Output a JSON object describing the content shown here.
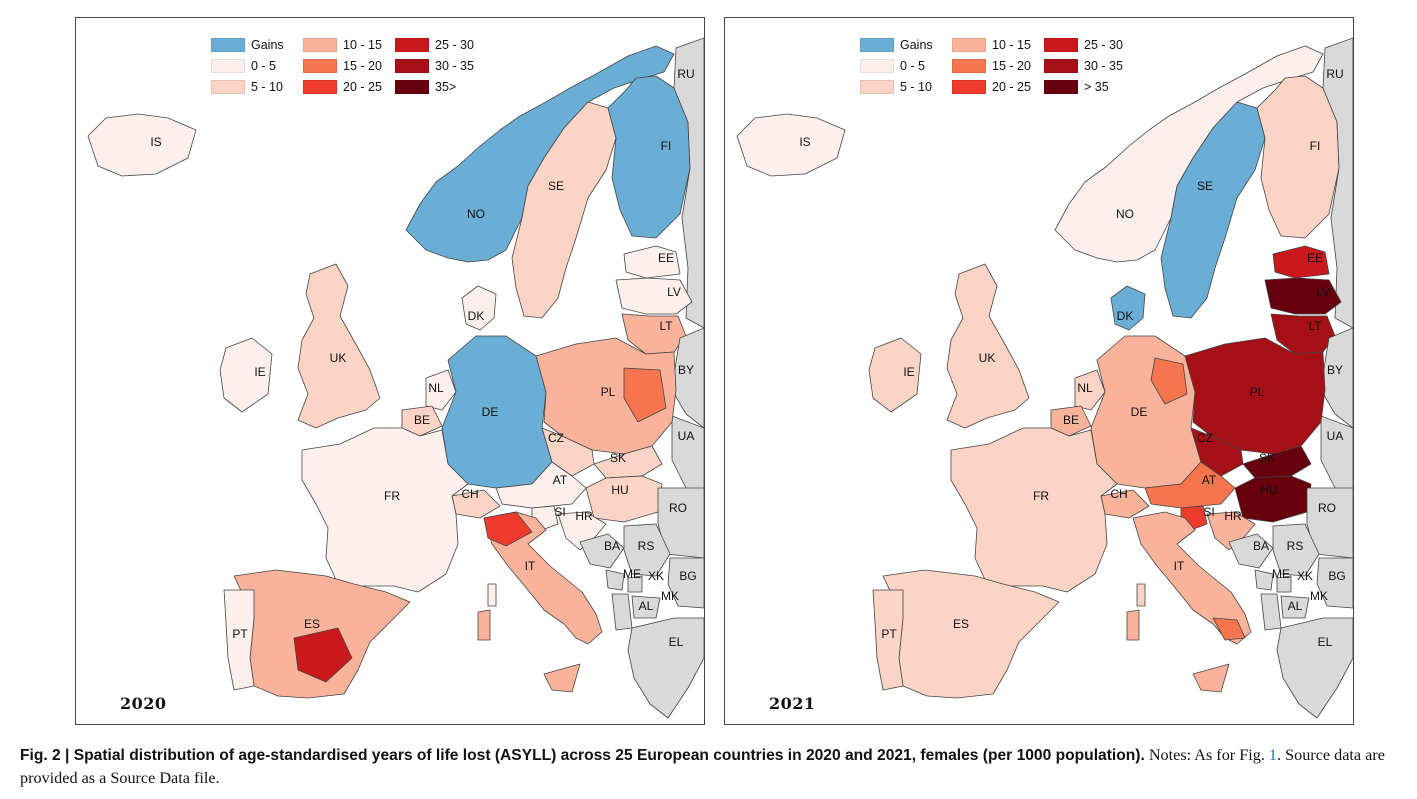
{
  "colors": {
    "gains": "#6aaed6",
    "c0_5": "#fdf0ec",
    "c5_10": "#fbd4c6",
    "c10_15": "#f9b39b",
    "c15_20": "#f6754e",
    "c20_25": "#ef3b2c",
    "c25_30": "#cb181d",
    "c30_35": "#a50f15",
    "c35": "#67000d",
    "nonstudy": "#d9d9d9",
    "border": "#444444"
  },
  "maps": [
    {
      "year": "2020",
      "legend": [
        "Gains",
        "0 - 5",
        "5 - 10",
        "10 - 15",
        "15 - 20",
        "20 - 25",
        "25 - 30",
        "30 - 35",
        "35>"
      ],
      "countries": {
        "IS": "c0_5",
        "NO": "gains",
        "SE": "c5_10",
        "FI": "gains",
        "EE": "c0_5",
        "LV": "c0_5",
        "LT": "c10_15",
        "DK": "c0_5",
        "UK": "c5_10",
        "IE": "c0_5",
        "NL": "c0_5",
        "BE": "c5_10",
        "DE": "gains",
        "PL": "c10_15",
        "CZ": "c5_10",
        "SK": "c5_10",
        "AT": "c0_5",
        "HU": "c5_10",
        "CH": "c5_10",
        "FR": "c0_5",
        "SI": "c0_5",
        "HR": "c0_5",
        "IT": "c10_15",
        "ES": "c10_15",
        "PT": "c0_5"
      },
      "hotspots": [
        {
          "label": "ES-center",
          "cls": "c25_30"
        },
        {
          "label": "IT-north",
          "cls": "c20_25"
        },
        {
          "label": "PL-east",
          "cls": "c15_20"
        }
      ]
    },
    {
      "year": "2021",
      "legend": [
        "Gains",
        "0 - 5",
        "5 - 10",
        "10 - 15",
        "15 - 20",
        "20 - 25",
        "25 - 30",
        "30 - 35",
        "> 35"
      ],
      "countries": {
        "IS": "c0_5",
        "NO": "c0_5",
        "SE": "gains",
        "FI": "c5_10",
        "EE": "c25_30",
        "LV": "c35",
        "LT": "c30_35",
        "DK": "gains",
        "UK": "c5_10",
        "IE": "c5_10",
        "NL": "c5_10",
        "BE": "c10_15",
        "DE": "c10_15",
        "PL": "c30_35",
        "CZ": "c30_35",
        "SK": "c35",
        "AT": "c15_20",
        "HU": "c35",
        "CH": "c10_15",
        "FR": "c5_10",
        "SI": "c20_25",
        "HR": "c10_15",
        "IT": "c10_15",
        "ES": "c5_10",
        "PT": "c5_10"
      },
      "hotspots": [
        {
          "label": "IT-south",
          "cls": "c15_20"
        },
        {
          "label": "DE-east",
          "cls": "c15_20"
        }
      ]
    }
  ],
  "labels": [
    "RU",
    "IS",
    "FI",
    "SE",
    "NO",
    "EE",
    "LV",
    "DK",
    "LT",
    "UK",
    "BY",
    "IE",
    "NL",
    "DE",
    "PL",
    "BE",
    "UA",
    "CZ",
    "SK",
    "FR",
    "AT",
    "HU",
    "CH",
    "RO",
    "SI",
    "HR",
    "BA",
    "RS",
    "IT",
    "ME",
    "XK",
    "BG",
    "AL",
    "MK",
    "ES",
    "PT",
    "EL"
  ],
  "caption": {
    "bold": "Fig. 2 | Spatial distribution of age-standardised years of life lost (ASYLL) across 25 European countries in 2020 and 2021, females (per 1000 population).",
    "notes_a": " Notes: As for Fig. ",
    "ref": "1",
    "notes_b": ". Source data are provided as a Source Data file."
  }
}
